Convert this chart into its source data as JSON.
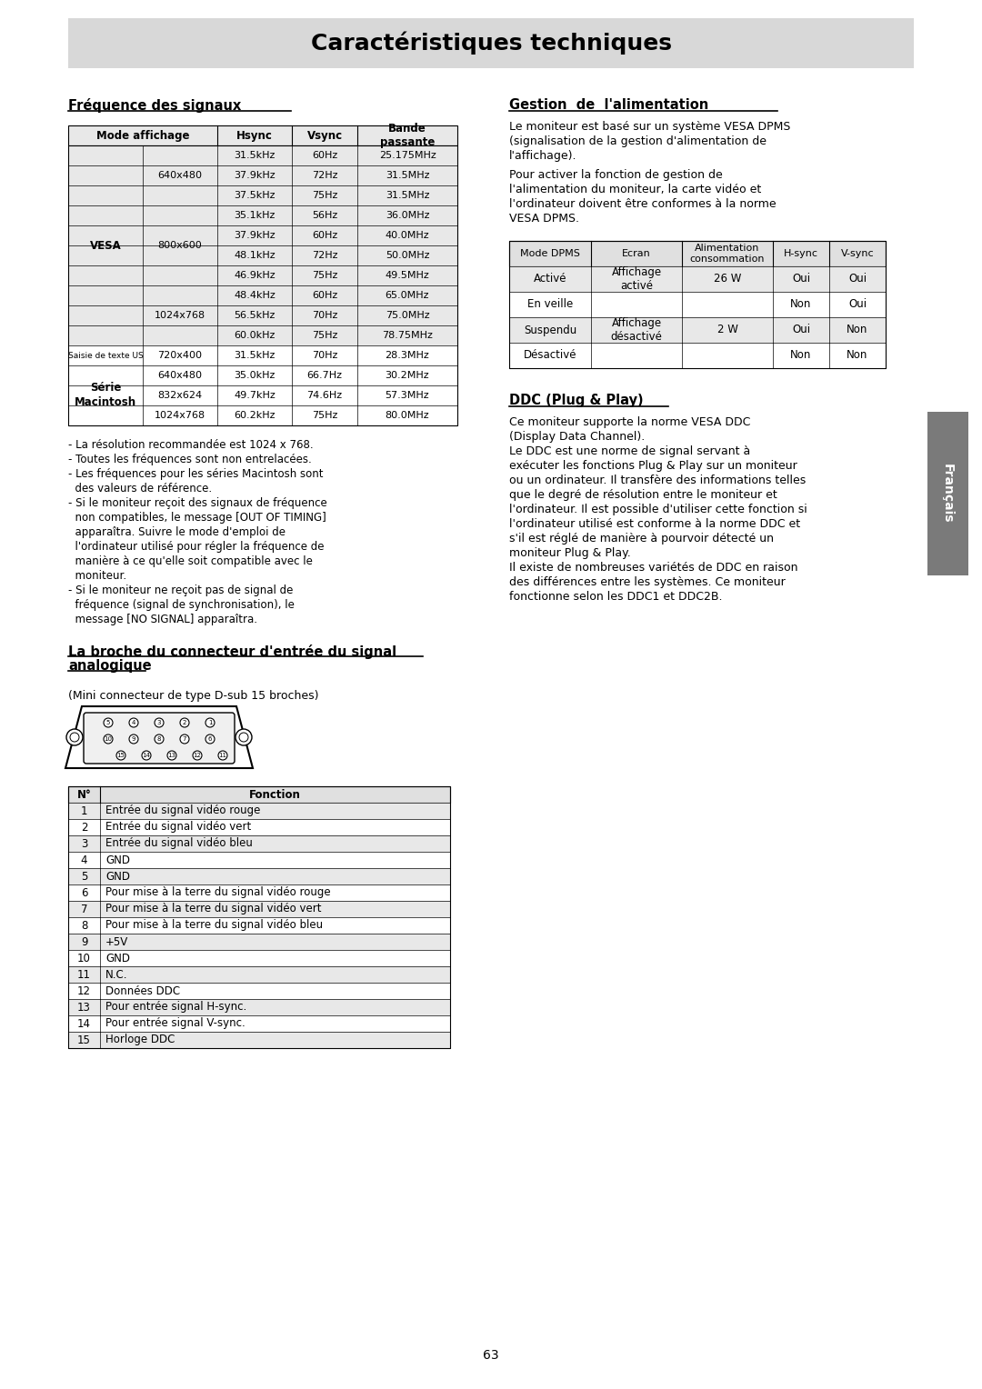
{
  "title": "Caractéristiques techniques",
  "title_bg": "#d8d8d8",
  "page_bg": "#ffffff",
  "page_number": "63",
  "section1_title": "Fréquence des signaux",
  "freq_table_rows": [
    [
      "VESA",
      "640x480",
      "31.5kHz",
      "60Hz",
      "25.175MHz"
    ],
    [
      "",
      "",
      "37.9kHz",
      "72Hz",
      "31.5MHz"
    ],
    [
      "",
      "",
      "37.5kHz",
      "75Hz",
      "31.5MHz"
    ],
    [
      "",
      "800x600",
      "35.1kHz",
      "56Hz",
      "36.0MHz"
    ],
    [
      "",
      "",
      "37.9kHz",
      "60Hz",
      "40.0MHz"
    ],
    [
      "",
      "",
      "48.1kHz",
      "72Hz",
      "50.0MHz"
    ],
    [
      "",
      "",
      "46.9kHz",
      "75Hz",
      "49.5MHz"
    ],
    [
      "",
      "1024x768",
      "48.4kHz",
      "60Hz",
      "65.0MHz"
    ],
    [
      "",
      "",
      "56.5kHz",
      "70Hz",
      "75.0MHz"
    ],
    [
      "",
      "",
      "60.0kHz",
      "75Hz",
      "78.75MHz"
    ],
    [
      "Saisie de texte US",
      "720x400",
      "31.5kHz",
      "70Hz",
      "28.3MHz"
    ],
    [
      "Série\nMacintosh",
      "640x480",
      "35.0kHz",
      "66.7Hz",
      "30.2MHz"
    ],
    [
      "",
      "832x624",
      "49.7kHz",
      "74.6Hz",
      "57.3MHz"
    ],
    [
      "",
      "1024x768",
      "60.2kHz",
      "75Hz",
      "80.0MHz"
    ]
  ],
  "note_lines": [
    "- La résolution recommandée est 1024 x 768.",
    "- Toutes les fréquences sont non entrelacées.",
    "- Les fréquences pour les séries Macintosh sont",
    "  des valeurs de référence.",
    "- Si le moniteur reçoit des signaux de fréquence",
    "  non compatibles, le message [OUT OF TIMING]",
    "  apparaîtra. Suivre le mode d'emploi de",
    "  l'ordinateur utilisé pour régler la fréquence de",
    "  manière à ce qu'elle soit compatible avec le",
    "  moniteur.",
    "- Si le moniteur ne reçoit pas de signal de",
    "  fréquence (signal de synchronisation), le",
    "  message [NO SIGNAL] apparaîtra."
  ],
  "section2_line1": "La broche du connecteur d'entrée du signal",
  "section2_line2": "analogique",
  "connector_note": "(Mini connecteur de type D-sub 15 broches)",
  "pin_table_rows": [
    [
      "1",
      "Entrée du signal vidéo rouge"
    ],
    [
      "2",
      "Entrée du signal vidéo vert"
    ],
    [
      "3",
      "Entrée du signal vidéo bleu"
    ],
    [
      "4",
      "GND"
    ],
    [
      "5",
      "GND"
    ],
    [
      "6",
      "Pour mise à la terre du signal vidéo rouge"
    ],
    [
      "7",
      "Pour mise à la terre du signal vidéo vert"
    ],
    [
      "8",
      "Pour mise à la terre du signal vidéo bleu"
    ],
    [
      "9",
      "+5V"
    ],
    [
      "10",
      "GND"
    ],
    [
      "11",
      "N.C."
    ],
    [
      "12",
      "Données DDC"
    ],
    [
      "13",
      "Pour entrée signal H-sync."
    ],
    [
      "14",
      "Pour entrée signal V-sync."
    ],
    [
      "15",
      "Horloge DDC"
    ]
  ],
  "section3_title": "Gestion  de  l'alimentation",
  "para1_lines": [
    "Le moniteur est basé sur un système VESA DPMS",
    "(signalisation de la gestion d'alimentation de",
    "l'affichage)."
  ],
  "para2_lines": [
    "Pour activer la fonction de gestion de",
    "l'alimentation du moniteur, la carte vidéo et",
    "l'ordinateur doivent être conformes à la norme",
    "VESA DPMS."
  ],
  "dpms_headers": [
    "Mode DPMS",
    "Ecran",
    "Alimentation\nconsommation",
    "H-sync",
    "V-sync"
  ],
  "dpms_mode_col": [
    "Activé",
    "En veille",
    "Suspendu",
    "Désactivé"
  ],
  "dpms_hsync": [
    "Oui",
    "Non",
    "Oui",
    "Non"
  ],
  "dpms_vsync": [
    "Oui",
    "Oui",
    "Non",
    "Non"
  ],
  "section4_title": "DDC (Plug & Play)",
  "ddc_lines": [
    "Ce moniteur supporte la norme VESA DDC",
    "(Display Data Channel).",
    "Le DDC est une norme de signal servant à",
    "exécuter les fonctions Plug & Play sur un moniteur",
    "ou un ordinateur. Il transfère des informations telles",
    "que le degré de résolution entre le moniteur et",
    "l'ordinateur. Il est possible d'utiliser cette fonction si",
    "l'ordinateur utilisé est conforme à la norme DDC et",
    "s'il est réglé de manière à pourvoir détecté un",
    "moniteur Plug & Play.",
    "Il existe de nombreuses variétés de DDC en raison",
    "des différences entre les systèmes. Ce moniteur",
    "fonctionne selon les DDC1 et DDC2B."
  ],
  "francais_bg": "#7a7a7a",
  "francais_text": "Français"
}
